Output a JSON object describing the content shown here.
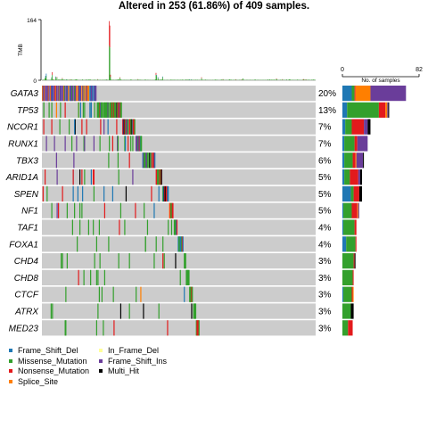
{
  "chart_data": {
    "type": "oncoplot",
    "title": "Altered in 253 (61.86%) of 409 samples.",
    "n_samples": 409,
    "tmb_panel": {
      "ylabel": "TMB",
      "ylim": [
        0,
        164
      ],
      "ticks": [
        "164",
        "0"
      ]
    },
    "bar_panel": {
      "xlabel": "No. of samples",
      "xlim": [
        0,
        82
      ],
      "ticks": [
        "0",
        "82"
      ]
    },
    "colors": {
      "Frame_Shift_Del": "#1f78b4",
      "Missense_Mutation": "#33a02c",
      "Nonsense_Mutation": "#e31a1c",
      "Splice_Site": "#ff7f00",
      "In_Frame_Del": "#ffff99",
      "Frame_Shift_Ins": "#6a3d9a",
      "Multi_Hit": "#000000",
      "background": "#cccccc"
    },
    "legend": [
      {
        "label": "Frame_Shift_Del",
        "key": "Frame_Shift_Del"
      },
      {
        "label": "Missense_Mutation",
        "key": "Missense_Mutation"
      },
      {
        "label": "Nonsense_Mutation",
        "key": "Nonsense_Mutation"
      },
      {
        "label": "Splice_Site",
        "key": "Splice_Site"
      },
      {
        "label": "In_Frame_Del",
        "key": "In_Frame_Del"
      },
      {
        "label": "Frame_Shift_Ins",
        "key": "Frame_Shift_Ins"
      },
      {
        "label": "Multi_Hit",
        "key": "Multi_Hit"
      }
    ],
    "genes": [
      {
        "name": "GATA3",
        "pct": "20%",
        "counts": {
          "Frame_Shift_Del": 10,
          "Missense_Mutation": 3,
          "Nonsense_Mutation": 1,
          "Splice_Site": 16,
          "Frame_Shift_Ins": 38,
          "Multi_Hit": 0
        }
      },
      {
        "name": "TP53",
        "pct": "13%",
        "counts": {
          "Frame_Shift_Del": 5,
          "Missense_Mutation": 34,
          "Nonsense_Mutation": 7,
          "Splice_Site": 2,
          "Frame_Shift_Ins": 1,
          "Multi_Hit": 1
        }
      },
      {
        "name": "NCOR1",
        "pct": "7%",
        "counts": {
          "Frame_Shift_Del": 3,
          "Missense_Mutation": 7,
          "Nonsense_Mutation": 13,
          "Splice_Site": 0,
          "Frame_Shift_Ins": 4,
          "Multi_Hit": 3
        }
      },
      {
        "name": "RUNX1",
        "pct": "7%",
        "counts": {
          "Frame_Shift_Del": 2,
          "Missense_Mutation": 11,
          "Nonsense_Mutation": 3,
          "Splice_Site": 0,
          "Frame_Shift_Ins": 11,
          "Multi_Hit": 0
        }
      },
      {
        "name": "TBX3",
        "pct": "6%",
        "counts": {
          "Frame_Shift_Del": 2,
          "Missense_Mutation": 9,
          "Nonsense_Mutation": 3,
          "Splice_Site": 1,
          "Frame_Shift_Ins": 7,
          "Multi_Hit": 1
        }
      },
      {
        "name": "ARID1A",
        "pct": "5%",
        "counts": {
          "Frame_Shift_Del": 2,
          "Missense_Mutation": 6,
          "Nonsense_Mutation": 9,
          "Splice_Site": 0,
          "Frame_Shift_Ins": 2,
          "Multi_Hit": 2
        }
      },
      {
        "name": "SPEN",
        "pct": "5%",
        "counts": {
          "Frame_Shift_Del": 9,
          "Missense_Mutation": 3,
          "Nonsense_Mutation": 6,
          "Splice_Site": 0,
          "Frame_Shift_Ins": 0,
          "Multi_Hit": 3
        }
      },
      {
        "name": "NF1",
        "pct": "5%",
        "counts": {
          "Frame_Shift_Del": 1,
          "Missense_Mutation": 9,
          "Nonsense_Mutation": 6,
          "Splice_Site": 1,
          "Frame_Shift_Ins": 1,
          "Multi_Hit": 0
        }
      },
      {
        "name": "TAF1",
        "pct": "4%",
        "counts": {
          "Frame_Shift_Del": 1,
          "Missense_Mutation": 12,
          "Nonsense_Mutation": 2,
          "Splice_Site": 0,
          "Frame_Shift_Ins": 0,
          "Multi_Hit": 0
        }
      },
      {
        "name": "FOXA1",
        "pct": "4%",
        "counts": {
          "Frame_Shift_Del": 4,
          "Missense_Mutation": 10,
          "Nonsense_Mutation": 1,
          "Splice_Site": 0,
          "Frame_Shift_Ins": 0,
          "Multi_Hit": 0
        }
      },
      {
        "name": "CHD4",
        "pct": "3%",
        "counts": {
          "Frame_Shift_Del": 0,
          "Missense_Mutation": 12,
          "Nonsense_Mutation": 1,
          "Splice_Site": 0,
          "Frame_Shift_Ins": 0,
          "Multi_Hit": 1
        }
      },
      {
        "name": "CHD8",
        "pct": "3%",
        "counts": {
          "Frame_Shift_Del": 0,
          "Missense_Mutation": 11,
          "Nonsense_Mutation": 1,
          "Splice_Site": 0,
          "Frame_Shift_Ins": 0,
          "Multi_Hit": 0
        }
      },
      {
        "name": "CTCF",
        "pct": "3%",
        "counts": {
          "Frame_Shift_Del": 1,
          "Missense_Mutation": 9,
          "Nonsense_Mutation": 1,
          "Splice_Site": 1,
          "Frame_Shift_Ins": 0,
          "Multi_Hit": 0
        }
      },
      {
        "name": "ATRX",
        "pct": "3%",
        "counts": {
          "Frame_Shift_Del": 0,
          "Missense_Mutation": 9,
          "Nonsense_Mutation": 0,
          "Splice_Site": 0,
          "Frame_Shift_Ins": 0,
          "Multi_Hit": 3
        }
      },
      {
        "name": "MED23",
        "pct": "3%",
        "counts": {
          "Frame_Shift_Del": 0,
          "Missense_Mutation": 6,
          "Nonsense_Mutation": 5,
          "Splice_Site": 0,
          "Frame_Shift_Ins": 0,
          "Multi_Hit": 0
        }
      }
    ]
  }
}
